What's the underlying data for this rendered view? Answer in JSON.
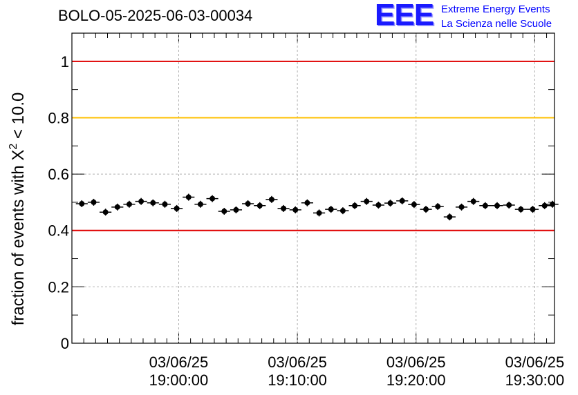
{
  "header": {
    "run_title": "BOLO-05-2025-06-03-00034"
  },
  "logo": {
    "mark": "EEE",
    "line1": "Extreme Energy Events",
    "line2": "La Scienza nelle Scuole",
    "color": "#0000ff"
  },
  "chart_data": {
    "type": "scatter",
    "ylabel_prefix": "fraction of events with ",
    "ylabel_symbol": "X",
    "ylabel_exponent": "2",
    "ylabel_suffix": " < 10.0",
    "xlabel": "",
    "ylim": [
      0,
      1.1
    ],
    "xlim": [
      "2025-06-03 18:51:00",
      "2025-06-03 19:31:40"
    ],
    "y_ticks": [
      "0",
      "0.2",
      "0.4",
      "0.6",
      "0.8",
      "1"
    ],
    "x_ticks": [
      {
        "date": "03/06/25",
        "time": "19:00:00"
      },
      {
        "date": "03/06/25",
        "time": "19:10:00"
      },
      {
        "date": "03/06/25",
        "time": "19:20:00"
      },
      {
        "date": "03/06/25",
        "time": "19:30:00"
      }
    ],
    "grid": true,
    "reference_lines": [
      {
        "value": 1.0,
        "color": "#e00000"
      },
      {
        "value": 0.8,
        "color": "#ffc000"
      },
      {
        "value": 0.4,
        "color": "#e00000"
      }
    ],
    "x": [
      "18:51:50",
      "18:52:50",
      "18:53:50",
      "18:54:50",
      "18:55:50",
      "18:56:50",
      "18:57:50",
      "18:58:50",
      "18:59:50",
      "19:00:50",
      "19:01:50",
      "19:02:50",
      "19:03:50",
      "19:04:50",
      "19:05:50",
      "19:06:50",
      "19:07:50",
      "19:08:50",
      "19:09:50",
      "19:10:50",
      "19:11:50",
      "19:12:50",
      "19:13:50",
      "19:14:50",
      "19:15:50",
      "19:16:50",
      "19:17:50",
      "19:18:50",
      "19:19:50",
      "19:20:50",
      "19:21:50",
      "19:22:50",
      "19:23:50",
      "19:24:50",
      "19:25:50",
      "19:26:50",
      "19:27:50",
      "19:28:50",
      "19:29:50",
      "19:30:50",
      "19:31:30"
    ],
    "y": [
      0.495,
      0.5,
      0.465,
      0.483,
      0.493,
      0.503,
      0.498,
      0.493,
      0.478,
      0.518,
      0.493,
      0.513,
      0.468,
      0.473,
      0.495,
      0.488,
      0.51,
      0.478,
      0.473,
      0.498,
      0.462,
      0.475,
      0.47,
      0.488,
      0.503,
      0.49,
      0.497,
      0.505,
      0.492,
      0.475,
      0.485,
      0.448,
      0.483,
      0.503,
      0.488,
      0.488,
      0.49,
      0.475,
      0.475,
      0.488,
      0.493
    ],
    "marker_color": "#000000"
  }
}
